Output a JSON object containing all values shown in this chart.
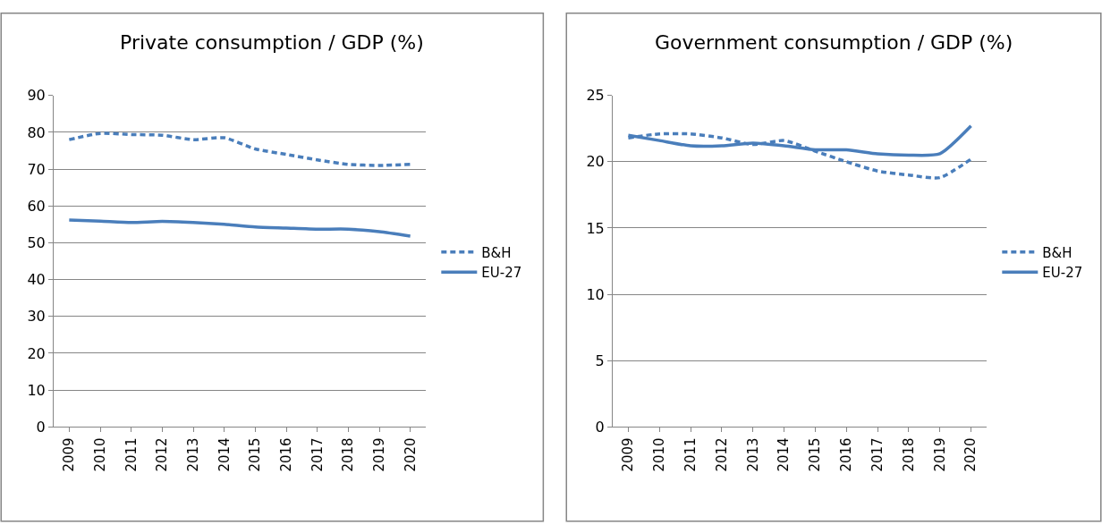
{
  "chart_data": [
    {
      "type": "line",
      "title": "Private consumption / GDP (%)",
      "categories": [
        "2009",
        "2010",
        "2011",
        "2012",
        "2013",
        "2014",
        "2015",
        "2016",
        "2017",
        "2018",
        "2019",
        "2020"
      ],
      "ylim": [
        0,
        90
      ],
      "yticks": [
        0,
        10,
        20,
        30,
        40,
        50,
        60,
        70,
        80,
        90
      ],
      "grid": "y",
      "legend": "right",
      "marker": "none",
      "series": [
        {
          "name": "B&H",
          "color": "#4a7ebb",
          "line_style": "dashed",
          "values": [
            78,
            79.7,
            79.4,
            79.2,
            78,
            78.5,
            75.5,
            74,
            72.5,
            71.3,
            71,
            71.3
          ]
        },
        {
          "name": "EU-27",
          "color": "#4a7ebb",
          "line_style": "solid",
          "values": [
            56.2,
            55.9,
            55.5,
            55.8,
            55.5,
            55,
            54.3,
            54,
            53.7,
            53.7,
            53,
            51.8
          ]
        }
      ]
    },
    {
      "type": "line",
      "title": "Government consumption / GDP (%)",
      "categories": [
        "2009",
        "2010",
        "2011",
        "2012",
        "2013",
        "2014",
        "2015",
        "2016",
        "2017",
        "2018",
        "2019",
        "2020"
      ],
      "ylim": [
        0,
        25
      ],
      "yticks": [
        0,
        5,
        10,
        15,
        20,
        25
      ],
      "grid": "y",
      "legend": "right",
      "marker": "none",
      "series": [
        {
          "name": "B&H",
          "color": "#4a7ebb",
          "line_style": "dashed",
          "values": [
            21.8,
            22.1,
            22.1,
            21.8,
            21.3,
            21.6,
            20.8,
            20,
            19.3,
            19,
            18.8,
            20.2
          ]
        },
        {
          "name": "EU-27",
          "color": "#4a7ebb",
          "line_style": "solid",
          "values": [
            22,
            21.6,
            21.2,
            21.2,
            21.4,
            21.2,
            20.9,
            20.9,
            20.6,
            20.5,
            20.6,
            22.7
          ]
        }
      ]
    }
  ]
}
